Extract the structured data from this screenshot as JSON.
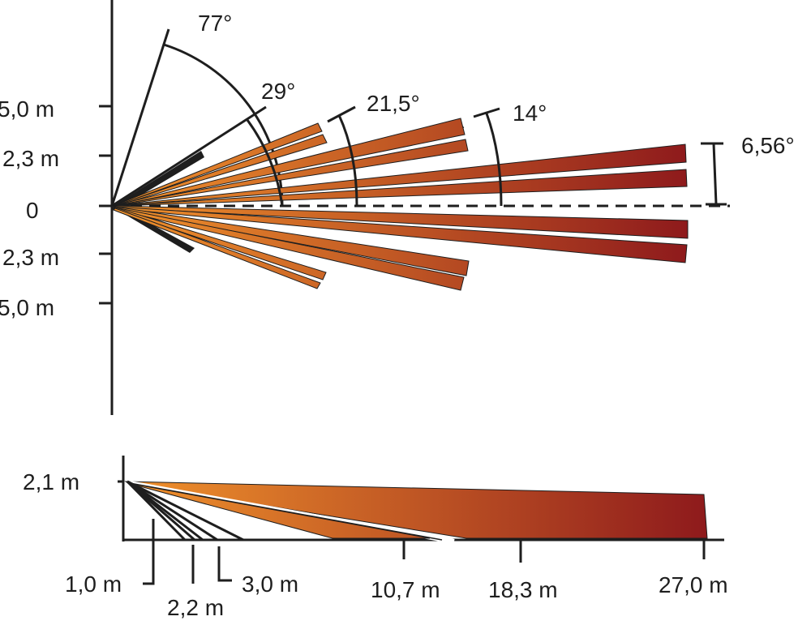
{
  "top_view": {
    "y_labels": [
      "5,0 m",
      "2,3 m",
      "0",
      "2,3 m",
      "5,0 m"
    ],
    "angles": [
      "77°",
      "29°",
      "21,5°",
      "14°",
      "6,56°"
    ]
  },
  "side_view": {
    "height_label": "2,1 m",
    "distance_labels": [
      "1,0 m",
      "2,2 m",
      "3,0 m",
      "10,7 m",
      "18,3 m",
      "27,0 m"
    ]
  },
  "colors": {
    "beam_start": "#f0922c",
    "beam_end": "#8e1a1c",
    "line": "#1e1e1e"
  }
}
